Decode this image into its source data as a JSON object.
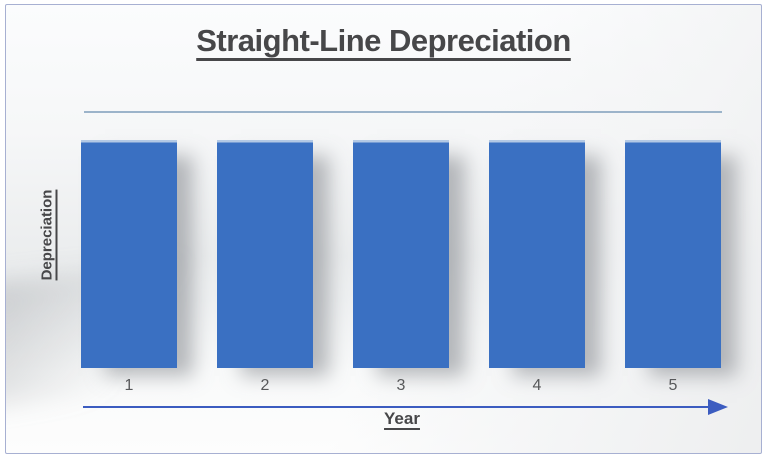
{
  "chart_data": {
    "type": "bar",
    "title": "Straight-Line Depreciation",
    "xlabel": "Year",
    "ylabel": "Depreciation",
    "categories": [
      "1",
      "2",
      "3",
      "4",
      "5"
    ],
    "values": [
      1,
      1,
      1,
      1,
      1
    ],
    "ylim": [
      0,
      1.15
    ],
    "grid": false,
    "legend": false
  },
  "colors": {
    "bar": "#3A70C2",
    "bar_top_highlight": "#B3C9E5",
    "axis_arrow": "#3C5CC0",
    "reference_line": "#9CB4CA",
    "text": "#474749",
    "tick_text": "#57585A",
    "frame_border": "#A7B0D2"
  }
}
